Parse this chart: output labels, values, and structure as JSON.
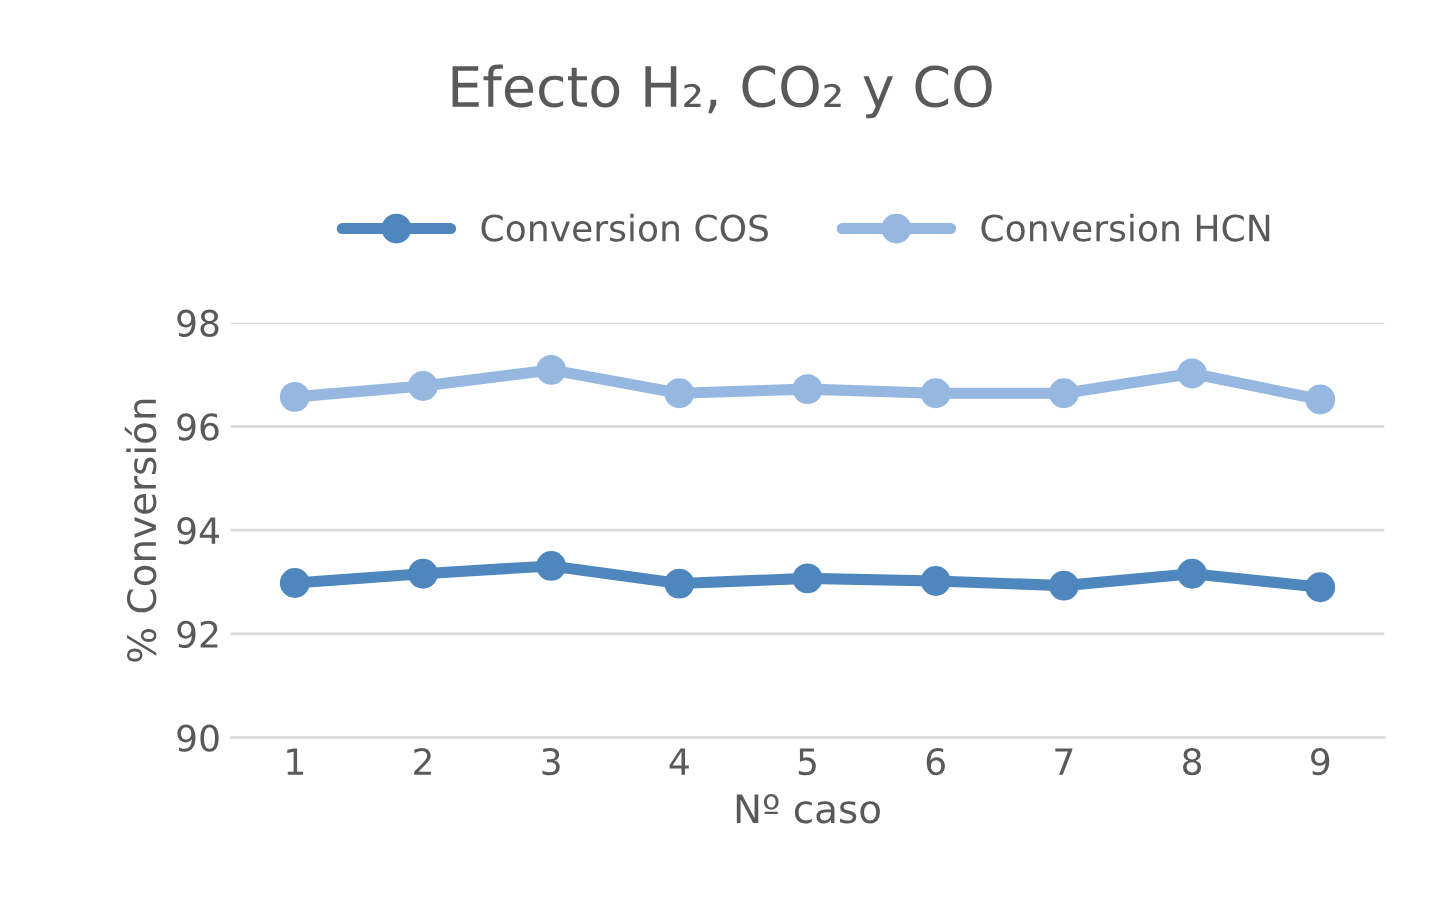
{
  "chart_data": {
    "type": "line",
    "title": "Efecto H₂, CO₂ y CO",
    "xlabel": "Nº caso",
    "ylabel": "% Conversión",
    "categories": [
      "1",
      "2",
      "3",
      "4",
      "5",
      "6",
      "7",
      "8",
      "9"
    ],
    "series": [
      {
        "name": "Conversion COS",
        "color": "#4e87bd",
        "values": [
          92.98,
          93.16,
          93.31,
          92.97,
          93.07,
          93.02,
          92.93,
          93.16,
          92.9
        ]
      },
      {
        "name": "Conversion HCN",
        "color": "#95b7e0",
        "values": [
          96.57,
          96.78,
          97.09,
          96.64,
          96.72,
          96.64,
          96.64,
          97.02,
          96.52
        ]
      }
    ],
    "ylim": [
      90,
      98
    ],
    "yticks": [
      90,
      92,
      94,
      96,
      98
    ],
    "grid": "y",
    "legend": "top",
    "marker": "circle",
    "line_style": "solid"
  }
}
